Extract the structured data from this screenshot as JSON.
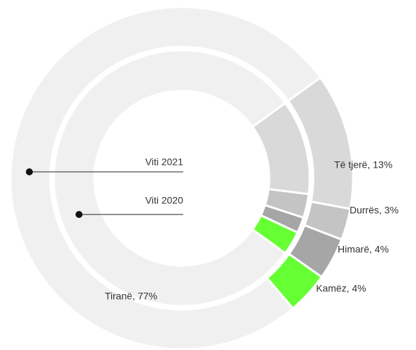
{
  "chart_data": {
    "type": "donut",
    "categories": [
      "Të tjerë",
      "Durrës",
      "Himarë",
      "Kamëz",
      "Tiranë"
    ],
    "colors": [
      "#d9d9d9",
      "#c4c4c4",
      "#a6a6a6",
      "#66ff33",
      "#f0f0f0"
    ],
    "series": [
      {
        "name": "Viti 2021",
        "values": [
          13,
          3,
          4,
          4,
          77
        ],
        "value_labels": [
          "Të tjerë, 13%",
          "Durrës, 3%",
          "Himarë, 4%",
          "Kamëz, 4%",
          "Tiranë, 77%"
        ]
      },
      {
        "name": "Viti 2020",
        "values": [
          12,
          3,
          2,
          3,
          80
        ]
      }
    ]
  }
}
